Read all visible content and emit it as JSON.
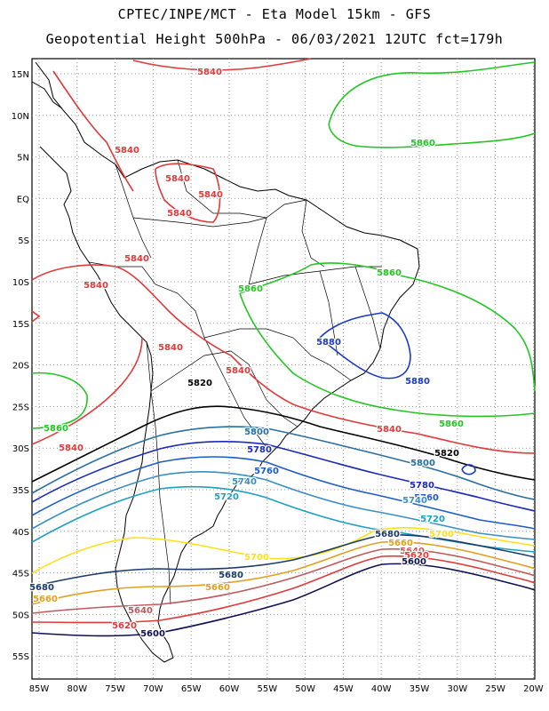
{
  "title_line1": "CPTEC/INPE/MCT -  Eta Model 15km - GFS",
  "title_line2": "Geopotential Height 500hPa - 06/03/2021 12UTC fct=179h",
  "lat_labels": [
    "15N",
    "10N",
    "5N",
    "EQ",
    "5S",
    "10S",
    "15S",
    "20S",
    "25S",
    "30S",
    "35S",
    "40S",
    "45S",
    "50S",
    "55S"
  ],
  "lon_labels": [
    "85W",
    "80W",
    "75W",
    "70W",
    "65W",
    "60W",
    "55W",
    "50W",
    "45W",
    "40W",
    "35W",
    "30W",
    "25W",
    "20W"
  ],
  "contour_colors": {
    "5860": "#22c622",
    "5840": "#e03a3a",
    "5820": "#000000",
    "5800": "#2a6fa0",
    "5780": "#1a2ab8",
    "5760": "#1c5cc8",
    "5740": "#3a8fc0",
    "5720": "#1fa0c0",
    "5700": "#ffe01a",
    "5680": "#1a3a6a",
    "5660": "#e0a020",
    "5640": "#c05a5a",
    "5620": "#e03a3a",
    "5600": "#101050"
  },
  "contour_labels": [
    {
      "text": "5840",
      "color": "5840"
    },
    {
      "text": "5860",
      "color": "5860"
    },
    {
      "text": "5840",
      "color": "5840"
    },
    {
      "text": "5840",
      "color": "5840"
    },
    {
      "text": "5840",
      "color": "5840"
    },
    {
      "text": "5840",
      "color": "5840"
    },
    {
      "text": "5840",
      "color": "5840"
    },
    {
      "text": "5860",
      "color": "5860"
    },
    {
      "text": "5860",
      "color": "5860"
    },
    {
      "text": "5840",
      "color": "5840"
    },
    {
      "text": "5880",
      "color": "5880c"
    },
    {
      "text": "5840",
      "color": "5840"
    },
    {
      "text": "5840",
      "color": "5840"
    },
    {
      "text": "5820",
      "color": "5820"
    },
    {
      "text": "5880",
      "color": "5880c"
    },
    {
      "text": "5860",
      "color": "5860"
    },
    {
      "text": "5860",
      "color": "5860"
    },
    {
      "text": "5840",
      "color": "5840"
    },
    {
      "text": "5840",
      "color": "5840"
    },
    {
      "text": "5820",
      "color": "5820"
    },
    {
      "text": "5800",
      "color": "5800"
    },
    {
      "text": "5780",
      "color": "5780"
    },
    {
      "text": "5760",
      "color": "5760"
    },
    {
      "text": "5800",
      "color": "5800"
    },
    {
      "text": "5780",
      "color": "5780"
    },
    {
      "text": "5740",
      "color": "5740"
    },
    {
      "text": "5760",
      "color": "5760"
    },
    {
      "text": "5720",
      "color": "5720"
    },
    {
      "text": "5740",
      "color": "5740"
    },
    {
      "text": "5720",
      "color": "5720"
    },
    {
      "text": "5680",
      "color": "5680"
    },
    {
      "text": "5700",
      "color": "5700"
    },
    {
      "text": "5660",
      "color": "5660"
    },
    {
      "text": "5700",
      "color": "5700"
    },
    {
      "text": "5640",
      "color": "5640"
    },
    {
      "text": "5620",
      "color": "5620"
    },
    {
      "text": "5600",
      "color": "5600"
    },
    {
      "text": "5680",
      "color": "5680"
    },
    {
      "text": "5680",
      "color": "5680"
    },
    {
      "text": "5660",
      "color": "5660"
    },
    {
      "text": "5660",
      "color": "5660"
    },
    {
      "text": "5640",
      "color": "5640"
    },
    {
      "text": "5620",
      "color": "5620"
    },
    {
      "text": "5600",
      "color": "5600"
    }
  ]
}
